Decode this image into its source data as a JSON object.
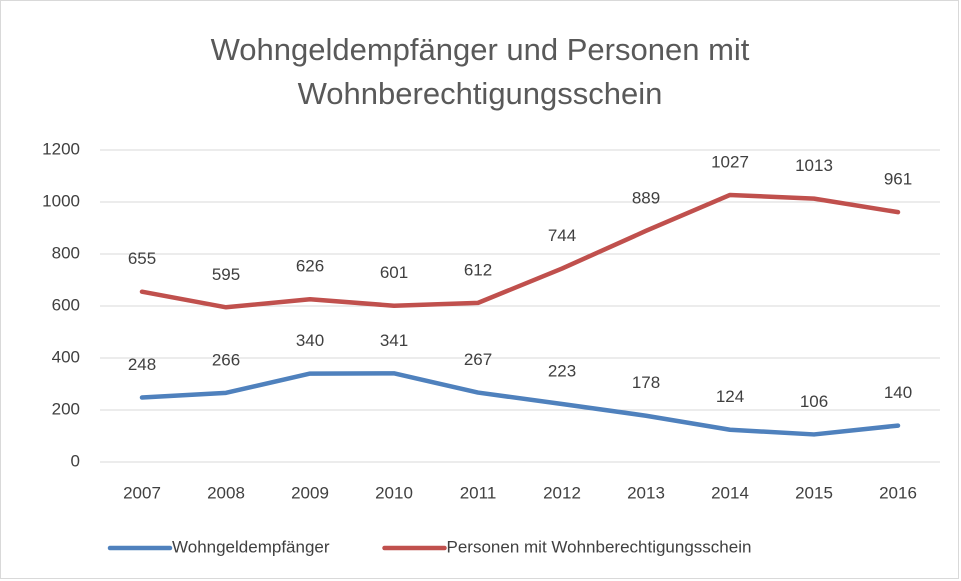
{
  "chart_data": {
    "type": "line",
    "title": "Wohngeldempfänger und Personen mit Wohnberechtigungsschein",
    "categories": [
      "2007",
      "2008",
      "2009",
      "2010",
      "2011",
      "2012",
      "2013",
      "2014",
      "2015",
      "2016"
    ],
    "series": [
      {
        "name": "Wohngeldempfänger",
        "color": "#4f81bd",
        "values": [
          248,
          266,
          340,
          341,
          267,
          223,
          178,
          124,
          106,
          140
        ]
      },
      {
        "name": "Personen mit Wohnberechtigungsschein",
        "color": "#c0504d",
        "values": [
          655,
          595,
          626,
          601,
          612,
          744,
          889,
          1027,
          1013,
          961
        ]
      }
    ],
    "ylim": [
      0,
      1200
    ],
    "yticks": [
      0,
      200,
      400,
      600,
      800,
      1000,
      1200
    ],
    "grid": true,
    "legend": "bottom"
  }
}
